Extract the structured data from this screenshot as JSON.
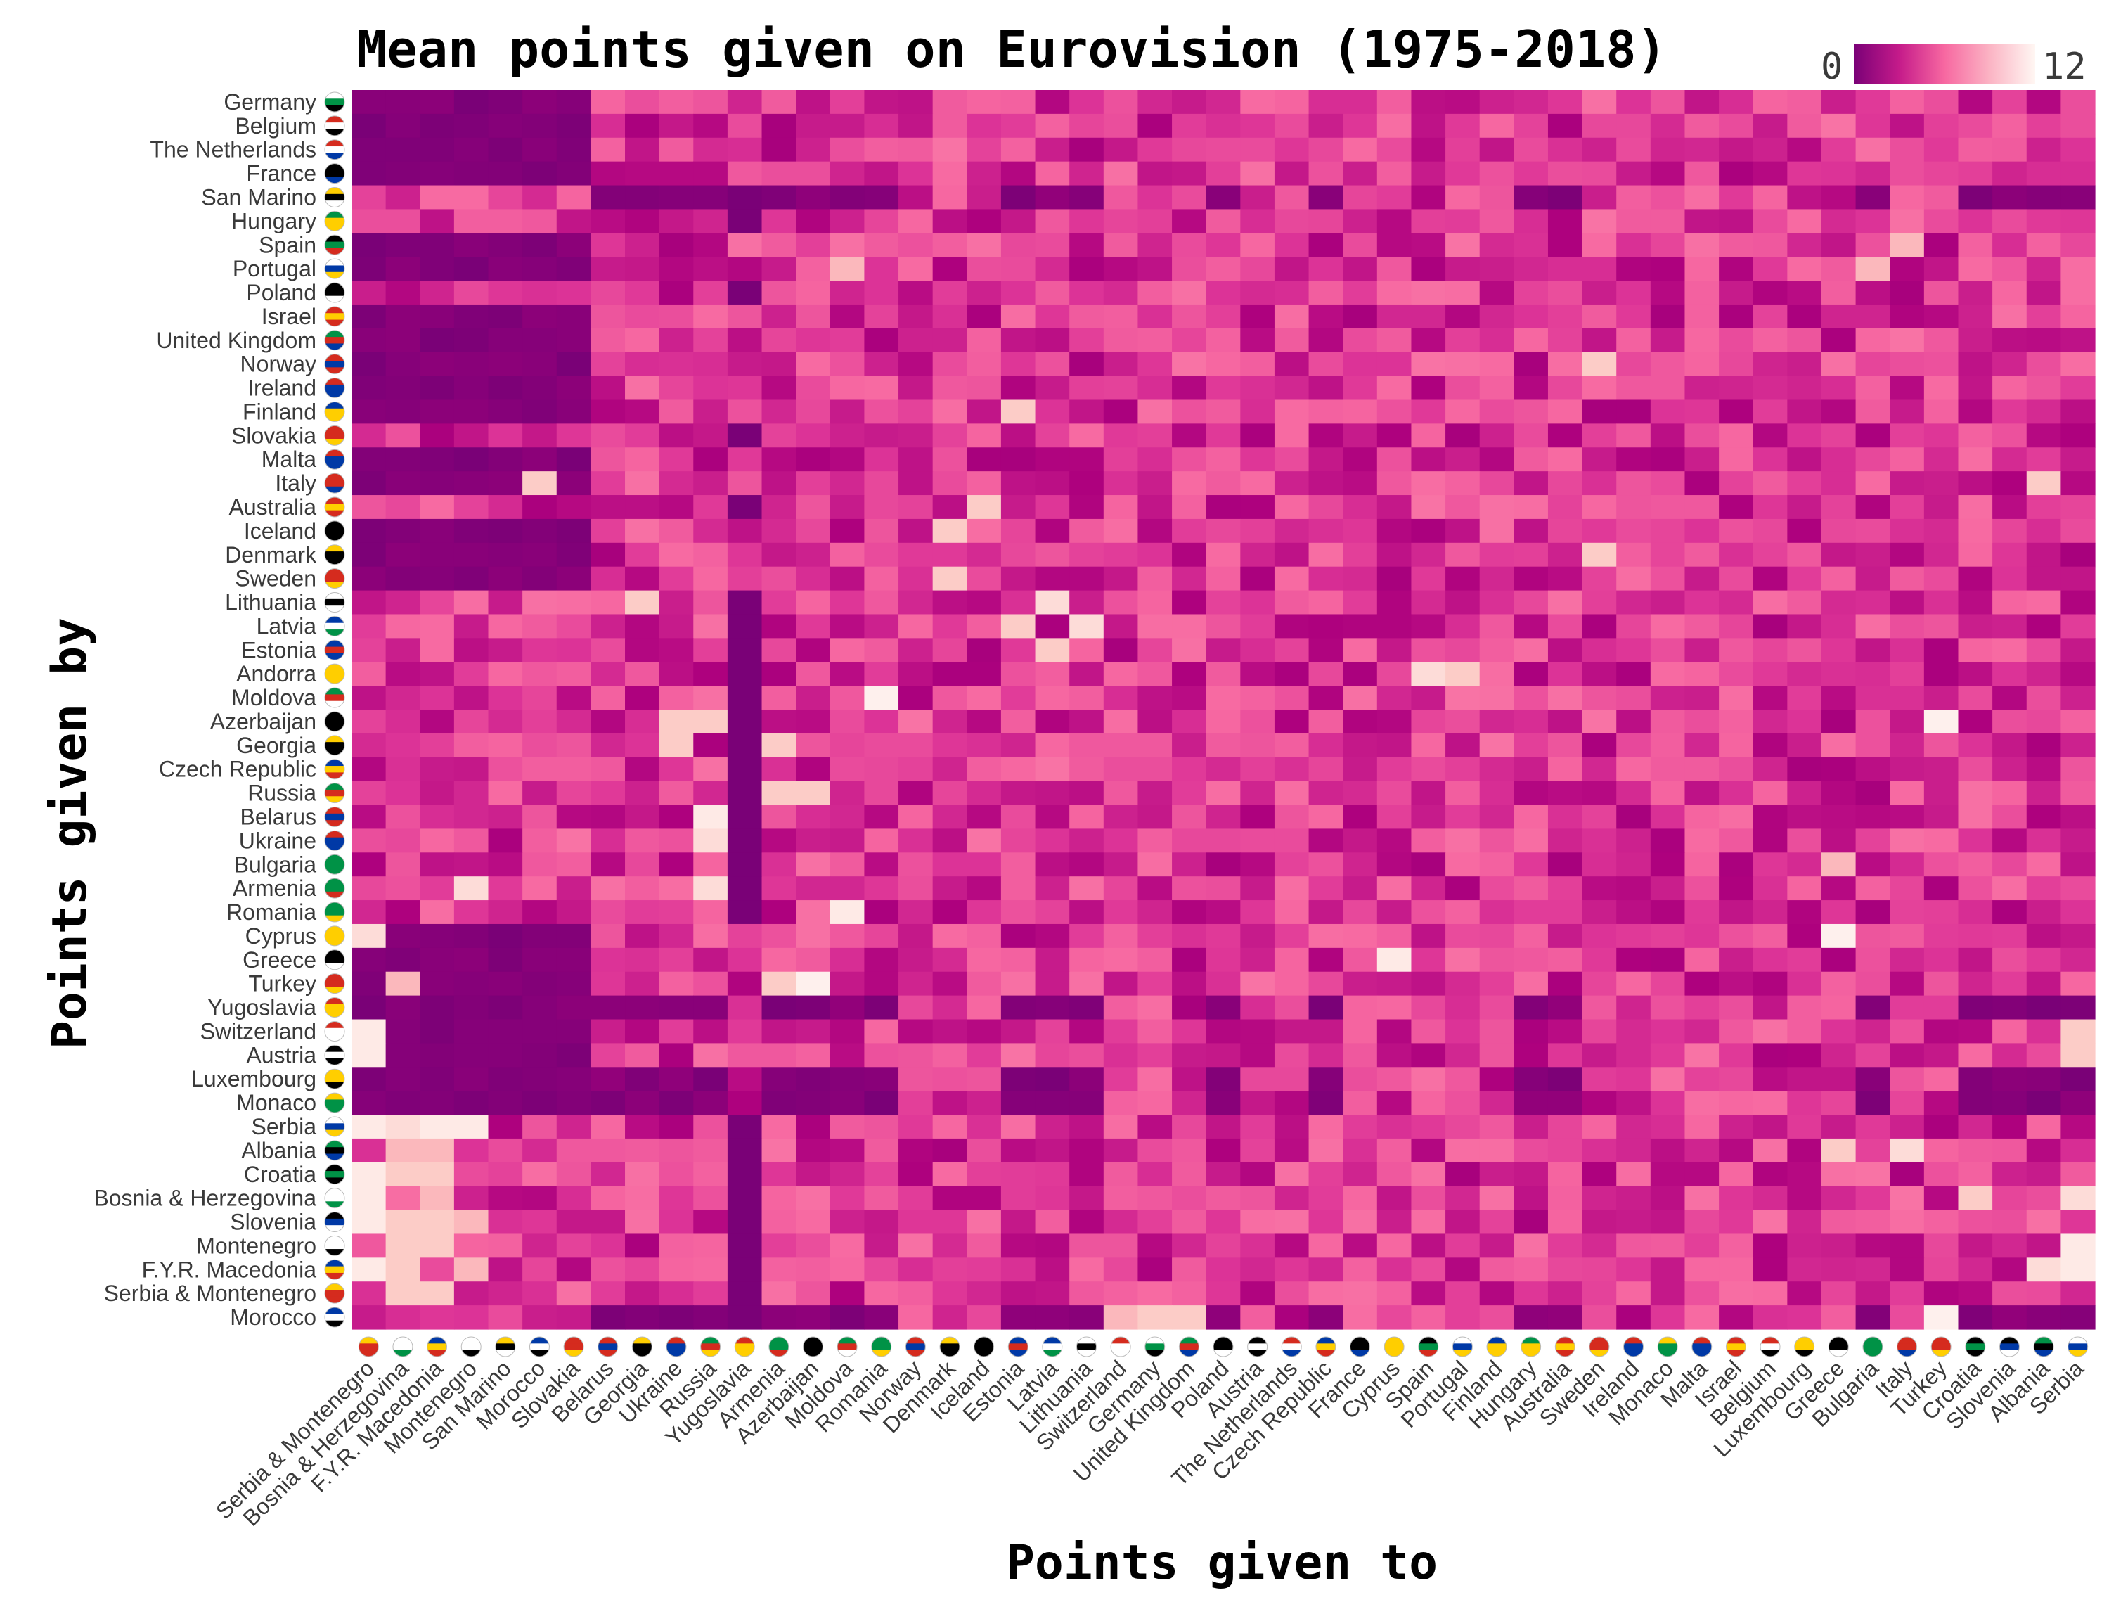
{
  "chart_data": {
    "type": "heatmap",
    "title": "Mean points given on Eurovision (1975-2018)",
    "xlabel": "Points given to",
    "ylabel": "Points given by",
    "color_range": [
      0,
      12
    ],
    "legend": {
      "min_label": "0",
      "max_label": "12",
      "placement": "top-right"
    },
    "colorscale": [
      "#7a0177",
      "#ae017e",
      "#dd3497",
      "#f768a1",
      "#fa9fb5",
      "#fcc5c0",
      "#fde0dd",
      "#fff7f3"
    ],
    "x_categories": [
      "Serbia & Montenegro",
      "Bosnia & Herzegovina",
      "F.Y.R. Macedonia",
      "Montenegro",
      "San Marino",
      "Morocco",
      "Slovakia",
      "Belarus",
      "Georgia",
      "Ukraine",
      "Russia",
      "Yugoslavia",
      "Armenia",
      "Azerbaijan",
      "Moldova",
      "Romania",
      "Norway",
      "Denmark",
      "Iceland",
      "Estonia",
      "Latvia",
      "Lithuania",
      "Switzerland",
      "Germany",
      "United Kingdom",
      "Poland",
      "Austria",
      "The Netherlands",
      "Czech Republic",
      "France",
      "Cyprus",
      "Spain",
      "Portugal",
      "Finland",
      "Hungary",
      "Australia",
      "Sweden",
      "Ireland",
      "Monaco",
      "Malta",
      "Israel",
      "Belgium",
      "Luxembourg",
      "Greece",
      "Bulgaria",
      "Italy",
      "Turkey",
      "Croatia",
      "Slovenia",
      "Albania",
      "Serbia"
    ],
    "y_categories": [
      "Germany",
      "Belgium",
      "The Netherlands",
      "France",
      "San Marino",
      "Hungary",
      "Spain",
      "Portugal",
      "Poland",
      "Israel",
      "United Kingdom",
      "Norway",
      "Ireland",
      "Finland",
      "Slovakia",
      "Malta",
      "Italy",
      "Australia",
      "Iceland",
      "Denmark",
      "Sweden",
      "Lithuania",
      "Latvia",
      "Estonia",
      "Andorra",
      "Moldova",
      "Azerbaijan",
      "Georgia",
      "Czech Republic",
      "Russia",
      "Belarus",
      "Ukraine",
      "Bulgaria",
      "Armenia",
      "Romania",
      "Cyprus",
      "Greece",
      "Turkey",
      "Yugoslavia",
      "Switzerland",
      "Austria",
      "Luxembourg",
      "Monaco",
      "Serbia",
      "Albania",
      "Croatia",
      "Bosnia & Herzegovina",
      "Slovenia",
      "Montenegro",
      "F.Y.R. Macedonia",
      "Serbia & Montenegro",
      "Morocco"
    ],
    "values_note_grid": "rows follow y_categories, columns follow x_categories",
    "values": []
  }
}
